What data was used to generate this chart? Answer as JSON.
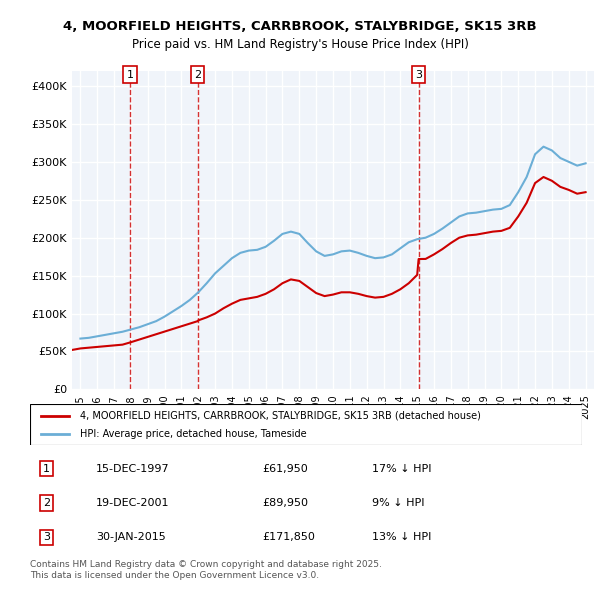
{
  "title": "4, MOORFIELD HEIGHTS, CARRBROOK, STALYBRIDGE, SK15 3RB",
  "subtitle": "Price paid vs. HM Land Registry's House Price Index (HPI)",
  "legend_line1": "4, MOORFIELD HEIGHTS, CARRBROOK, STALYBRIDGE, SK15 3RB (detached house)",
  "legend_line2": "HPI: Average price, detached house, Tameside",
  "footer1": "Contains HM Land Registry data © Crown copyright and database right 2025.",
  "footer2": "This data is licensed under the Open Government Licence v3.0.",
  "transactions": [
    {
      "num": 1,
      "date": "15-DEC-1997",
      "price": 61950,
      "pct": "17% ↓ HPI"
    },
    {
      "num": 2,
      "date": "19-DEC-2001",
      "price": 89950,
      "pct": "9% ↓ HPI"
    },
    {
      "num": 3,
      "date": "30-JAN-2015",
      "price": 171850,
      "pct": "13% ↓ HPI"
    }
  ],
  "sale_dates_decimal": [
    1997.958,
    2001.958,
    2015.083
  ],
  "sale_prices": [
    61950,
    89950,
    171850
  ],
  "hpi_color": "#6baed6",
  "price_color": "#cc0000",
  "background_color": "#f0f4fa",
  "grid_color": "#ffffff",
  "ylim": [
    0,
    420000
  ],
  "xlim_start": 1994.5,
  "xlim_end": 2025.5,
  "hpi_x": [
    1995,
    1995.5,
    1996,
    1996.5,
    1997,
    1997.5,
    1998,
    1998.5,
    1999,
    1999.5,
    2000,
    2000.5,
    2001,
    2001.5,
    2002,
    2002.5,
    2003,
    2003.5,
    2004,
    2004.5,
    2005,
    2005.5,
    2006,
    2006.5,
    2007,
    2007.5,
    2008,
    2008.5,
    2009,
    2009.5,
    2010,
    2010.5,
    2011,
    2011.5,
    2012,
    2012.5,
    2013,
    2013.5,
    2014,
    2014.5,
    2015,
    2015.5,
    2016,
    2016.5,
    2017,
    2017.5,
    2018,
    2018.5,
    2019,
    2019.5,
    2020,
    2020.5,
    2021,
    2021.5,
    2022,
    2022.5,
    2023,
    2023.5,
    2024,
    2024.5,
    2025
  ],
  "hpi_y": [
    67000,
    68000,
    70000,
    72000,
    74000,
    76000,
    79000,
    82000,
    86000,
    90000,
    96000,
    103000,
    110000,
    118000,
    128000,
    140000,
    153000,
    163000,
    173000,
    180000,
    183000,
    184000,
    188000,
    196000,
    205000,
    208000,
    205000,
    193000,
    182000,
    176000,
    178000,
    182000,
    183000,
    180000,
    176000,
    173000,
    174000,
    178000,
    186000,
    194000,
    198000,
    200000,
    205000,
    212000,
    220000,
    228000,
    232000,
    233000,
    235000,
    237000,
    238000,
    243000,
    260000,
    280000,
    310000,
    320000,
    315000,
    305000,
    300000,
    295000,
    298000
  ],
  "price_x": [
    1994.5,
    1995,
    1995.5,
    1996,
    1996.5,
    1997,
    1997.5,
    1997.958,
    2001.958,
    2002,
    2002.5,
    2003,
    2003.5,
    2004,
    2004.5,
    2005,
    2005.5,
    2006,
    2006.5,
    2007,
    2007.5,
    2008,
    2008.5,
    2009,
    2009.5,
    2010,
    2010.5,
    2011,
    2011.5,
    2012,
    2012.5,
    2013,
    2013.5,
    2014,
    2014.5,
    2015,
    2015.083,
    2015.5,
    2016,
    2016.5,
    2017,
    2017.5,
    2018,
    2018.5,
    2019,
    2019.5,
    2020,
    2020.5,
    2021,
    2021.5,
    2022,
    2022.5,
    2023,
    2023.5,
    2024,
    2024.5,
    2025
  ],
  "price_y": [
    52000,
    54000,
    55000,
    56000,
    57000,
    58000,
    59000,
    61950,
    89950,
    91000,
    95000,
    100000,
    107000,
    113000,
    118000,
    120000,
    122000,
    126000,
    132000,
    140000,
    145000,
    143000,
    135000,
    127000,
    123000,
    125000,
    128000,
    128000,
    126000,
    123000,
    121000,
    122000,
    126000,
    132000,
    140000,
    151000,
    171850,
    172000,
    178000,
    185000,
    193000,
    200000,
    203000,
    204000,
    206000,
    208000,
    209000,
    213000,
    228000,
    246000,
    272000,
    280000,
    275000,
    267000,
    263000,
    258000,
    260000
  ]
}
